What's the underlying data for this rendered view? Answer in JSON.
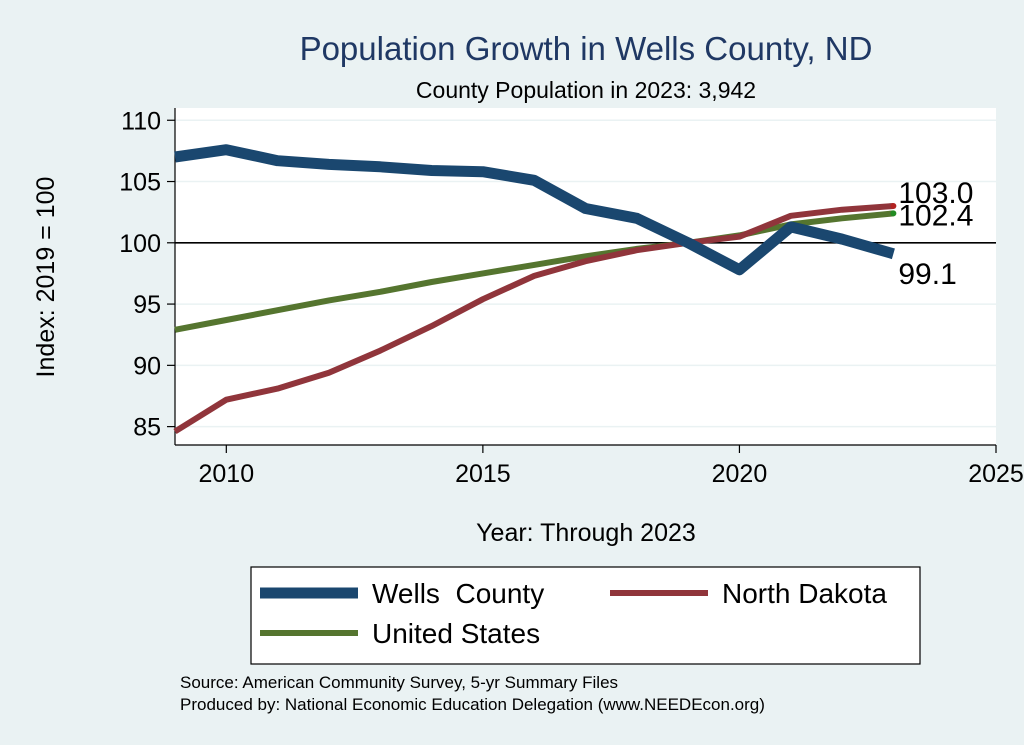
{
  "chart_data": {
    "type": "line",
    "title": "Population Growth in Wells County, ND",
    "subtitle": "County Population in 2023: 3,942",
    "xlabel": "Year: Through 2023",
    "ylabel": "Index: 2019 = 100",
    "xlim": [
      2009,
      2025
    ],
    "ylim": [
      83.5,
      111
    ],
    "xticks": [
      2010,
      2015,
      2020,
      2025
    ],
    "yticks": [
      85,
      90,
      95,
      100,
      105,
      110
    ],
    "reference_line": 100,
    "grid": true,
    "x": [
      2009,
      2010,
      2011,
      2012,
      2013,
      2014,
      2015,
      2016,
      2017,
      2018,
      2019,
      2020,
      2021,
      2022,
      2023
    ],
    "series": [
      {
        "name": "Wells  County",
        "color": "#1a476f",
        "values": [
          107.0,
          107.6,
          106.7,
          106.4,
          106.2,
          105.9,
          105.8,
          105.1,
          102.8,
          102.0,
          100.0,
          97.8,
          101.3,
          100.3,
          99.1
        ],
        "end_label": "99.1"
      },
      {
        "name": "North Dakota",
        "color": "#90353b",
        "values": [
          84.6,
          87.2,
          88.1,
          89.4,
          91.2,
          93.2,
          95.4,
          97.3,
          98.5,
          99.4,
          100.0,
          100.5,
          102.2,
          102.7,
          103.0
        ],
        "end_label": "103.0"
      },
      {
        "name": "United States",
        "color": "#55752f",
        "values": [
          92.9,
          93.7,
          94.5,
          95.3,
          96.0,
          96.8,
          97.5,
          98.2,
          98.9,
          99.5,
          100.0,
          100.6,
          101.5,
          102.0,
          102.4
        ],
        "end_label": "102.4"
      }
    ],
    "legend": {
      "position": "bottom"
    },
    "source_lines": [
      "Source: American Community Survey, 5-yr Summary Files",
      "Produced by: National Economic Education Delegation (www.NEEDEcon.org)"
    ]
  }
}
